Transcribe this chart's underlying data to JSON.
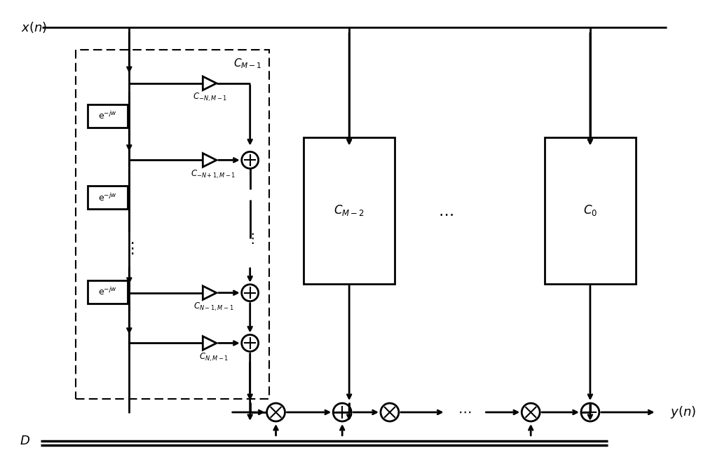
{
  "bg_color": "#ffffff",
  "line_color": "#000000",
  "fig_width": 10.0,
  "fig_height": 6.69,
  "dpi": 100
}
